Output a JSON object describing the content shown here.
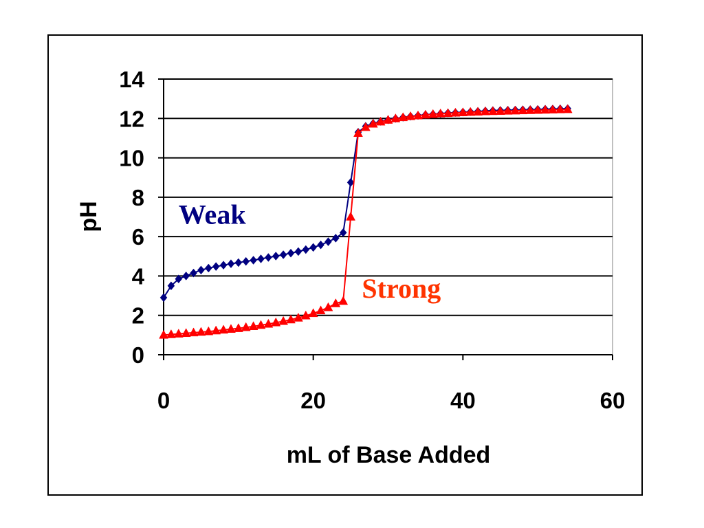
{
  "chart_data": {
    "type": "line",
    "xlabel": "mL of Base Added",
    "ylabel": "pH",
    "xlim": [
      0,
      60
    ],
    "ylim": [
      0,
      14
    ],
    "x_ticks": [
      0,
      20,
      40,
      60
    ],
    "y_ticks": [
      0,
      2,
      4,
      6,
      8,
      10,
      12,
      14
    ],
    "grid": "horizontal",
    "legend": "none",
    "series": [
      {
        "name": "Weak",
        "color": "#000080",
        "marker": "diamond",
        "x": [
          0,
          1,
          2,
          3,
          4,
          5,
          6,
          7,
          8,
          9,
          10,
          11,
          12,
          13,
          14,
          15,
          16,
          17,
          18,
          19,
          20,
          21,
          22,
          23,
          24,
          25,
          26,
          27,
          28,
          29,
          30,
          31,
          32,
          33,
          34,
          35,
          36,
          37,
          38,
          39,
          40,
          41,
          42,
          43,
          44,
          45,
          46,
          47,
          48,
          49,
          50,
          51,
          52,
          53,
          54
        ],
        "y": [
          2.9,
          3.5,
          3.85,
          4.0,
          4.15,
          4.3,
          4.4,
          4.48,
          4.55,
          4.62,
          4.68,
          4.74,
          4.8,
          4.87,
          4.94,
          5.01,
          5.08,
          5.16,
          5.24,
          5.34,
          5.45,
          5.58,
          5.74,
          5.92,
          6.2,
          8.75,
          11.3,
          11.6,
          11.75,
          11.85,
          11.93,
          12.0,
          12.06,
          12.11,
          12.15,
          12.19,
          12.22,
          12.25,
          12.28,
          12.3,
          12.32,
          12.34,
          12.36,
          12.38,
          12.4,
          12.41,
          12.42,
          12.43,
          12.44,
          12.45,
          12.46,
          12.47,
          12.48,
          12.49,
          12.5
        ]
      },
      {
        "name": "Strong",
        "color": "#ff0000",
        "marker": "triangle",
        "x": [
          0,
          1,
          2,
          3,
          4,
          5,
          6,
          7,
          8,
          9,
          10,
          11,
          12,
          13,
          14,
          15,
          16,
          17,
          18,
          19,
          20,
          21,
          22,
          23,
          24,
          25,
          26,
          27,
          28,
          29,
          30,
          31,
          32,
          33,
          34,
          35,
          36,
          37,
          38,
          39,
          40,
          41,
          42,
          43,
          44,
          45,
          46,
          47,
          48,
          49,
          50,
          51,
          52,
          53,
          54
        ],
        "y": [
          1.0,
          1.03,
          1.06,
          1.09,
          1.12,
          1.15,
          1.18,
          1.22,
          1.26,
          1.3,
          1.34,
          1.39,
          1.44,
          1.5,
          1.56,
          1.63,
          1.7,
          1.78,
          1.87,
          1.98,
          2.1,
          2.24,
          2.4,
          2.6,
          2.72,
          7.0,
          11.25,
          11.55,
          11.72,
          11.83,
          11.92,
          11.99,
          12.05,
          12.1,
          12.14,
          12.18,
          12.21,
          12.24,
          12.26,
          12.28,
          12.3,
          12.32,
          12.33,
          12.35,
          12.36,
          12.37,
          12.38,
          12.39,
          12.4,
          12.41,
          12.42,
          12.43,
          12.44,
          12.45,
          12.46
        ]
      }
    ],
    "annotations": [
      {
        "text": "Weak",
        "color": "#000080",
        "x": 2,
        "y": 6.65
      },
      {
        "text": "Strong",
        "color": "#ff3300",
        "x": 26.5,
        "y": 2.9
      }
    ]
  }
}
